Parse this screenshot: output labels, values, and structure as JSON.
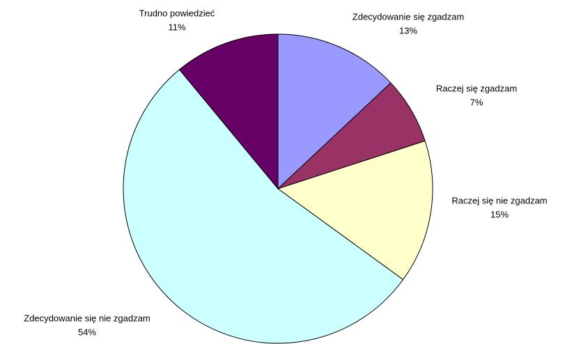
{
  "chart_data": {
    "type": "pie",
    "categories": [
      "Zdecydowanie się zgadzam",
      "Raczej się zgadzam",
      "Raczej się nie zgadzam",
      "Zdecydowanie się nie zgadzam",
      "Trudno powiedzieć"
    ],
    "values": [
      13,
      7,
      15,
      54,
      11
    ],
    "value_labels": [
      "13%",
      "7%",
      "15%",
      "54%",
      "11%"
    ],
    "colors": [
      "#9999ff",
      "#993366",
      "#ffffcc",
      "#ccffff",
      "#660066"
    ]
  }
}
